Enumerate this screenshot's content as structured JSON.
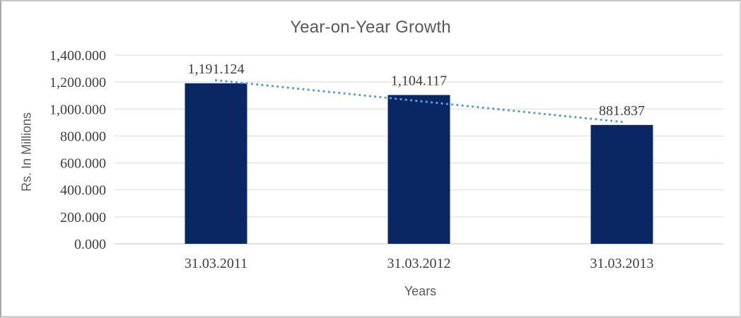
{
  "chart_data": {
    "type": "bar",
    "title": "Year-on-Year Growth",
    "xlabel": "Years",
    "ylabel": "Rs. In Millions",
    "categories": [
      "31.03.2011",
      "31.03.2012",
      "31.03.2013"
    ],
    "values": [
      1191.124,
      1104.117,
      881.837
    ],
    "data_labels": [
      "1,191.124",
      "1,104.117",
      "881.837"
    ],
    "ylim": [
      0,
      1400
    ],
    "ytick_step": 200,
    "ytick_labels": [
      "0.000",
      "200.000",
      "400.000",
      "600.000",
      "800.000",
      "1,000.000",
      "1,200.000",
      "1,400.000"
    ],
    "grid": true,
    "legend": "none",
    "trendline": {
      "type": "linear",
      "style": "dotted"
    },
    "colors": {
      "bar": "#0a2663",
      "trendline": "#5b9bd5",
      "gridline": "#d9d9d9",
      "axis_line": "#bfbfbf",
      "title_text": "#595959",
      "number_text": "#3d3d3d"
    }
  }
}
